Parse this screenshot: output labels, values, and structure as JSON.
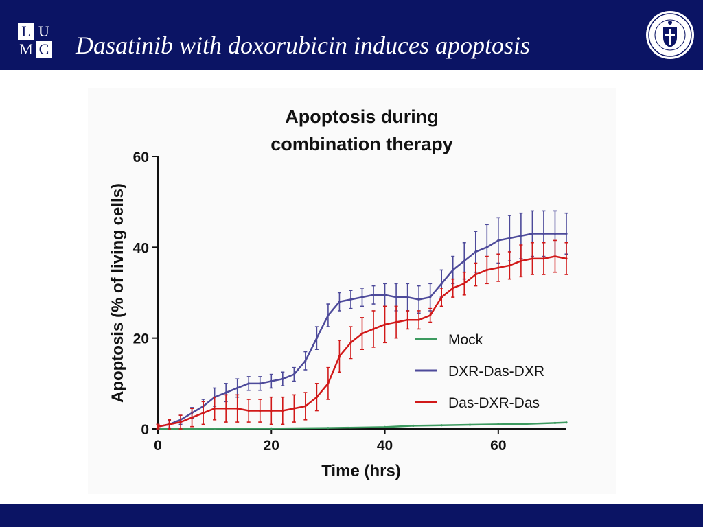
{
  "header": {
    "logo_letters": [
      "L",
      "U",
      "M",
      "C"
    ],
    "title": "Dasatinib with doxorubicin induces apoptosis",
    "seal_icon": "university-seal-icon"
  },
  "colors": {
    "brand_navy": "#0b1464",
    "mock": "#3c9a5f",
    "dxr_das_dxr": "#4d4a9a",
    "das_dxr_das": "#d11919"
  },
  "chart_data": {
    "type": "line",
    "title_lines": [
      "Apoptosis during",
      "combination therapy"
    ],
    "xlabel": "Time (hrs)",
    "ylabel": "Apoptosis (% of living cells)",
    "xlim": [
      0,
      72
    ],
    "ylim": [
      0,
      60
    ],
    "xticks": [
      0,
      20,
      40,
      60
    ],
    "yticks": [
      0,
      20,
      40,
      60
    ],
    "grid": false,
    "legend_position": "right-middle",
    "error_bars": "vertical",
    "series": [
      {
        "name": "Mock",
        "color": "#3c9a5f",
        "x": [
          0,
          10,
          20,
          30,
          40,
          45,
          50,
          55,
          60,
          65,
          70,
          72
        ],
        "y": [
          0,
          0.05,
          0.1,
          0.2,
          0.4,
          0.7,
          0.8,
          0.9,
          1.0,
          1.1,
          1.3,
          1.4
        ],
        "err": [
          0,
          0,
          0,
          0,
          0,
          0,
          0,
          0,
          0,
          0,
          0,
          0
        ]
      },
      {
        "name": "DXR-Das-DXR",
        "color": "#4d4a9a",
        "x": [
          0,
          2,
          4,
          6,
          8,
          10,
          12,
          14,
          16,
          18,
          20,
          22,
          24,
          26,
          28,
          30,
          32,
          34,
          36,
          38,
          40,
          42,
          44,
          46,
          48,
          50,
          52,
          54,
          56,
          58,
          60,
          62,
          64,
          66,
          68,
          70,
          72
        ],
        "y": [
          0.5,
          1,
          2,
          3.5,
          5,
          7,
          8,
          9,
          10,
          10,
          10.5,
          11,
          12,
          15,
          20,
          25,
          28,
          28.5,
          29,
          29.5,
          29.5,
          29,
          29,
          28.5,
          29,
          32,
          35,
          37,
          39,
          40,
          41.5,
          42,
          42.5,
          43,
          43,
          43,
          43
        ],
        "err": [
          0.5,
          0.8,
          1,
          1.2,
          1.5,
          2,
          2,
          2,
          1.5,
          1.5,
          1.5,
          1.5,
          1.5,
          2,
          2.5,
          2.5,
          2,
          2,
          2,
          2,
          2.5,
          3,
          3,
          3,
          3,
          3,
          3,
          4,
          4.5,
          5,
          5,
          5,
          5,
          5,
          5,
          5,
          4.5
        ]
      },
      {
        "name": "Das-DXR-Das",
        "color": "#d11919",
        "x": [
          0,
          2,
          4,
          6,
          8,
          10,
          12,
          14,
          16,
          18,
          20,
          22,
          24,
          26,
          28,
          30,
          32,
          34,
          36,
          38,
          40,
          42,
          44,
          46,
          48,
          50,
          52,
          54,
          56,
          58,
          60,
          62,
          64,
          66,
          68,
          70,
          72
        ],
        "y": [
          0.5,
          1,
          1.5,
          2.5,
          3.5,
          4.5,
          4.5,
          4.5,
          4,
          4,
          4,
          4,
          4.5,
          5,
          7,
          10,
          16,
          19,
          21,
          22,
          23,
          23.5,
          24,
          24,
          25,
          29,
          31,
          32,
          34,
          35,
          35.5,
          36,
          37,
          37.5,
          37.5,
          38,
          37.5
        ],
        "err": [
          0.5,
          1,
          1.5,
          2,
          2.5,
          2.5,
          3,
          3,
          2.5,
          2.5,
          3,
          3,
          3,
          3,
          3,
          3.5,
          3.5,
          3.5,
          3.5,
          4,
          4,
          3.5,
          2,
          2,
          1.5,
          2,
          2,
          2.5,
          2.5,
          3,
          3,
          3,
          3.5,
          3.5,
          3.5,
          3.5,
          3.5
        ]
      }
    ]
  }
}
